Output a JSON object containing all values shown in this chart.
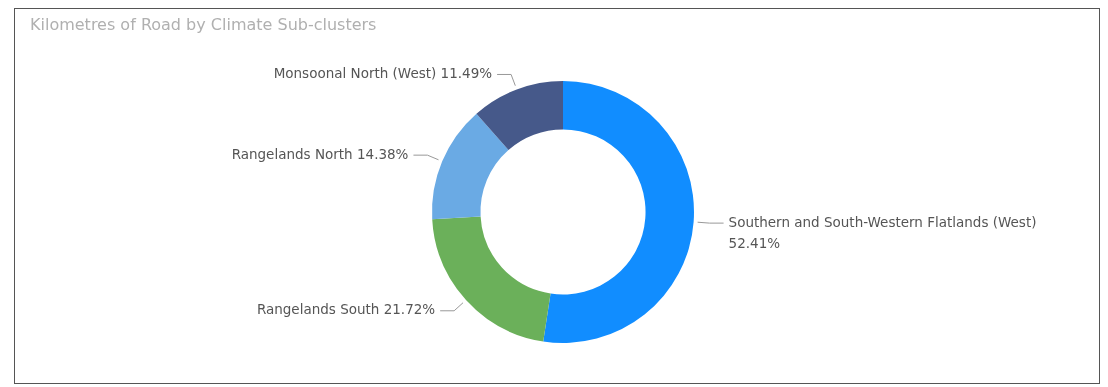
{
  "chart_data": {
    "type": "donut",
    "title": "Kilometres of Road by Climate Sub-clusters",
    "categories": [
      "Southern and South-Western Flatlands (West)",
      "Rangelands South",
      "Rangelands North",
      "Monsoonal North (West)"
    ],
    "values": [
      52.41,
      21.72,
      14.38,
      11.49
    ],
    "colors": [
      "#118dff",
      "#6bb05a",
      "#6aaae4",
      "#46598a"
    ],
    "value_labels": [
      "52.41%",
      "21.72%",
      "14.38%",
      "11.49%"
    ],
    "legend": false
  }
}
